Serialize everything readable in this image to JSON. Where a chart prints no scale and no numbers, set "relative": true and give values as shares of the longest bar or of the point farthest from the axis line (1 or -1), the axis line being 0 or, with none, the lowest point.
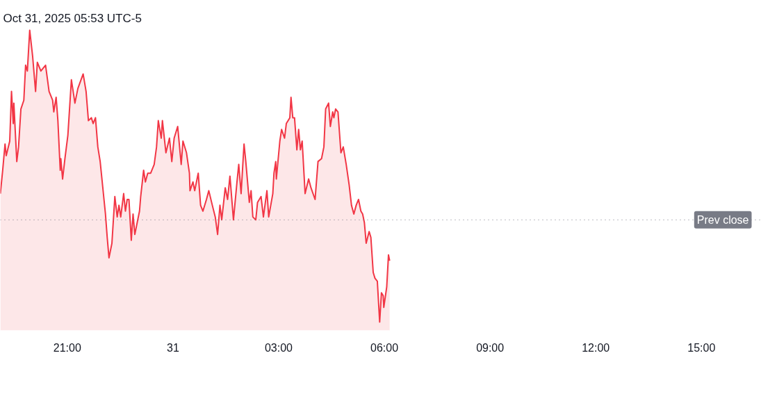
{
  "chart_data": {
    "type": "area",
    "relative": true,
    "color": "#f23645",
    "tick_labels": "x",
    "x": [
      "2025-10-30T19:06",
      "2025-10-30T19:10",
      "2025-10-30T19:14",
      "2025-10-30T19:16",
      "2025-10-30T19:22",
      "2025-10-30T19:25",
      "2025-10-30T19:28",
      "2025-10-30T19:29",
      "2025-10-30T19:34",
      "2025-10-30T19:37",
      "2025-10-30T19:41",
      "2025-10-30T19:46",
      "2025-10-30T19:49",
      "2025-10-30T19:52",
      "2025-10-30T19:56",
      "2025-10-30T20:01",
      "2025-10-30T20:06",
      "2025-10-30T20:09",
      "2025-10-30T20:15",
      "2025-10-30T20:23",
      "2025-10-30T20:29",
      "2025-10-30T20:35",
      "2025-10-30T20:37",
      "2025-10-30T20:41",
      "2025-10-30T20:44",
      "2025-10-30T20:48",
      "2025-10-30T20:49",
      "2025-10-30T20:52",
      "2025-10-30T20:56",
      "2025-10-30T21:01",
      "2025-10-30T21:07",
      "2025-10-30T21:13",
      "2025-10-30T21:18",
      "2025-10-30T21:27",
      "2025-10-30T21:32",
      "2025-10-30T21:36",
      "2025-10-30T21:41",
      "2025-10-30T21:44",
      "2025-10-30T21:48",
      "2025-10-30T21:52",
      "2025-10-30T21:56",
      "2025-10-30T22:02",
      "2025-10-30T22:05",
      "2025-10-30T22:08",
      "2025-10-30T22:11",
      "2025-10-30T22:16",
      "2025-10-30T22:21",
      "2025-10-30T22:25",
      "2025-10-30T22:28",
      "2025-10-30T22:31",
      "2025-10-30T22:36",
      "2025-10-30T22:39",
      "2025-10-30T22:42",
      "2025-10-30T22:45",
      "2025-10-30T22:49",
      "2025-10-30T22:52",
      "2025-10-30T22:55",
      "2025-10-30T22:59",
      "2025-10-30T23:03",
      "2025-10-30T23:05",
      "2025-10-30T23:10",
      "2025-10-30T23:13",
      "2025-10-30T23:17",
      "2025-10-30T23:22",
      "2025-10-30T23:28",
      "2025-10-30T23:32",
      "2025-10-30T23:35",
      "2025-10-30T23:40",
      "2025-10-30T23:42",
      "2025-10-30T23:48",
      "2025-10-30T23:54",
      "2025-10-30T23:58",
      "2025-10-31T00:02",
      "2025-10-31T00:08",
      "2025-10-31T00:14",
      "2025-10-31T00:17",
      "2025-10-31T00:23",
      "2025-10-31T00:28",
      "2025-10-31T00:29",
      "2025-10-31T00:34",
      "2025-10-31T00:37",
      "2025-10-31T00:43",
      "2025-10-31T00:47",
      "2025-10-31T00:51",
      "2025-10-31T00:57",
      "2025-10-31T01:01",
      "2025-10-31T01:07",
      "2025-10-31T01:12",
      "2025-10-31T01:16",
      "2025-10-31T01:20",
      "2025-10-31T01:23",
      "2025-10-31T01:29",
      "2025-10-31T01:33",
      "2025-10-31T01:37",
      "2025-10-31T01:43",
      "2025-10-31T01:49",
      "2025-10-31T01:52",
      "2025-10-31T01:56",
      "2025-10-31T02:01",
      "2025-10-31T02:04",
      "2025-10-31T02:10",
      "2025-10-31T02:13",
      "2025-10-31T02:16",
      "2025-10-31T02:21",
      "2025-10-31T02:24",
      "2025-10-31T02:30",
      "2025-10-31T02:34",
      "2025-10-31T02:40",
      "2025-10-31T02:43",
      "2025-10-31T02:50",
      "2025-10-31T02:52",
      "2025-10-31T02:55",
      "2025-10-31T02:56",
      "2025-10-31T03:02",
      "2025-10-31T03:05",
      "2025-10-31T03:10",
      "2025-10-31T03:13",
      "2025-10-31T03:19",
      "2025-10-31T03:21",
      "2025-10-31T03:24",
      "2025-10-31T03:27",
      "2025-10-31T03:31",
      "2025-10-31T03:34",
      "2025-10-31T03:37",
      "2025-10-31T03:40",
      "2025-10-31T03:45",
      "2025-10-31T03:51",
      "2025-10-31T03:55",
      "2025-10-31T04:02",
      "2025-10-31T04:07",
      "2025-10-31T04:13",
      "2025-10-31T04:17",
      "2025-10-31T04:20",
      "2025-10-31T04:25",
      "2025-10-31T04:28",
      "2025-10-31T04:32",
      "2025-10-31T04:34",
      "2025-10-31T04:37",
      "2025-10-31T04:41",
      "2025-10-31T04:46",
      "2025-10-31T04:50",
      "2025-10-31T04:55",
      "2025-10-31T05:00",
      "2025-10-31T05:04",
      "2025-10-31T05:08",
      "2025-10-31T05:12",
      "2025-10-31T05:16",
      "2025-10-31T05:20",
      "2025-10-31T05:23",
      "2025-10-31T05:26",
      "2025-10-31T05:29",
      "2025-10-31T05:34",
      "2025-10-31T05:37",
      "2025-10-31T05:41",
      "2025-10-31T05:44",
      "2025-10-31T05:48",
      "2025-10-31T05:52",
      "2025-10-31T05:55",
      "2025-10-31T05:58",
      "2025-10-31T05:59",
      "2025-10-31T06:04",
      "2025-10-31T06:07",
      "2025-10-31T06:09"
    ],
    "values": [
      0.44,
      0.52,
      0.61,
      0.57,
      0.62,
      0.79,
      0.68,
      0.75,
      0.55,
      0.6,
      0.73,
      0.76,
      0.88,
      0.86,
      1.0,
      0.91,
      0.79,
      0.89,
      0.86,
      0.88,
      0.79,
      0.76,
      0.72,
      0.77,
      0.69,
      0.52,
      0.56,
      0.49,
      0.56,
      0.64,
      0.83,
      0.75,
      0.8,
      0.85,
      0.79,
      0.69,
      0.7,
      0.68,
      0.7,
      0.6,
      0.55,
      0.43,
      0.37,
      0.29,
      0.22,
      0.27,
      0.43,
      0.36,
      0.4,
      0.36,
      0.44,
      0.38,
      0.42,
      0.42,
      0.28,
      0.37,
      0.3,
      0.34,
      0.38,
      0.43,
      0.52,
      0.48,
      0.51,
      0.51,
      0.54,
      0.6,
      0.69,
      0.63,
      0.69,
      0.58,
      0.63,
      0.55,
      0.63,
      0.67,
      0.54,
      0.62,
      0.58,
      0.51,
      0.45,
      0.48,
      0.45,
      0.51,
      0.4,
      0.38,
      0.42,
      0.45,
      0.4,
      0.36,
      0.3,
      0.4,
      0.35,
      0.46,
      0.42,
      0.5,
      0.35,
      0.48,
      0.54,
      0.44,
      0.61,
      0.55,
      0.41,
      0.45,
      0.36,
      0.35,
      0.41,
      0.43,
      0.36,
      0.45,
      0.36,
      0.44,
      0.51,
      0.55,
      0.49,
      0.62,
      0.66,
      0.63,
      0.68,
      0.7,
      0.77,
      0.7,
      0.7,
      0.59,
      0.66,
      0.59,
      0.62,
      0.44,
      0.49,
      0.46,
      0.42,
      0.55,
      0.56,
      0.6,
      0.73,
      0.75,
      0.67,
      0.72,
      0.7,
      0.73,
      0.72,
      0.58,
      0.6,
      0.54,
      0.47,
      0.4,
      0.37,
      0.4,
      0.42,
      0.38,
      0.37,
      0.34,
      0.27,
      0.31,
      0.29,
      0.17,
      0.15,
      0.14,
      0.0,
      0.1,
      0.09,
      0.05,
      0.12,
      0.23,
      0.21
    ],
    "xlim": [
      "2025-10-30T19:06",
      "2025-10-31T16:42"
    ],
    "xticks": [
      {
        "value": "2025-10-30T21:00",
        "label": "21:00"
      },
      {
        "value": "2025-10-31",
        "label": "31"
      },
      {
        "value": "2025-10-31T03:00",
        "label": "03:00"
      },
      {
        "value": "2025-10-31T06:00",
        "label": "06:00"
      },
      {
        "value": "2025-10-31T09:00",
        "label": "09:00"
      },
      {
        "value": "2025-10-31T12:00",
        "label": "12:00"
      },
      {
        "value": "2025-10-31T15:00",
        "label": "15:00"
      }
    ],
    "ref_lines": [
      {
        "axis": "y",
        "value": 0.35,
        "label": "Prev close",
        "color": "#787b86",
        "line_style": "dotted"
      }
    ],
    "annotations": [
      "Oct 31, 2025 05:53 UTC-5"
    ]
  }
}
